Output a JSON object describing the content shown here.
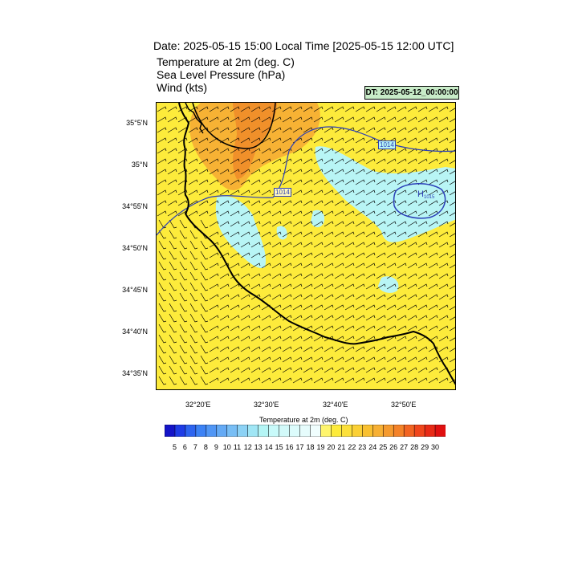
{
  "header": {
    "title": "Date: 2025-05-15  15:00 Local Time [2025-05-15  12:00 UTC]",
    "field1": "Temperature at 2m   (deg. C)",
    "field2": "Sea Level Pressure   (hPa)",
    "field3": "Wind   (kts)",
    "dt_label": "DT: 2025-05-12_00:00:00"
  },
  "map": {
    "lat_ticks": [
      "35°5'N",
      "35°N",
      "34°55'N",
      "34°50'N",
      "34°45'N",
      "34°40'N",
      "34°35'N"
    ],
    "lon_ticks": [
      "32°20'E",
      "32°30'E",
      "32°40'E",
      "32°50'E"
    ],
    "isobar_labels": [
      "1014",
      "1014"
    ],
    "high_marker": "H",
    "high_value": "1015",
    "colors": {
      "warm": "#fdeb3b",
      "orange": "#f7b234",
      "dark_orange": "#f0902a",
      "cool": "#b8f5f5",
      "coast": "#000000",
      "isobar": "#2b3fb8"
    }
  },
  "colorbar": {
    "title": "Temperature at 2m  (deg. C)",
    "labels": [
      "5",
      "6",
      "7",
      "8",
      "9",
      "10",
      "11",
      "12",
      "13",
      "14",
      "15",
      "16",
      "17",
      "18",
      "19",
      "20",
      "21",
      "22",
      "23",
      "24",
      "25",
      "26",
      "27",
      "28",
      "29",
      "30"
    ],
    "colors": [
      "#1414c8",
      "#1e3ce6",
      "#2d64f0",
      "#3c82f5",
      "#5096f5",
      "#64aaf5",
      "#78bef5",
      "#8cd2f5",
      "#a0e6f5",
      "#b4f5f5",
      "#c8fafa",
      "#d2fafa",
      "#dcfcfc",
      "#e6fcfc",
      "#f0fefe",
      "#fff56e",
      "#fdeb3b",
      "#fce03a",
      "#fbd035",
      "#f9c030",
      "#f7b034",
      "#f59a2e",
      "#f48228",
      "#f26422",
      "#f0461c",
      "#e82a16",
      "#e01010"
    ]
  }
}
